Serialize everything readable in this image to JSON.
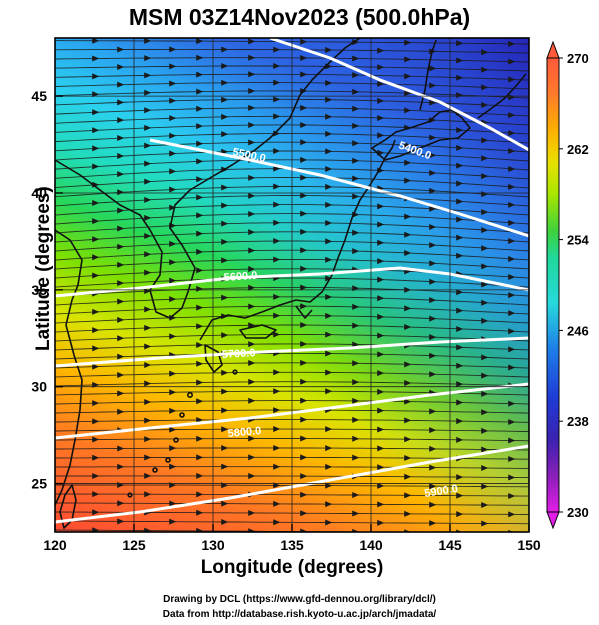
{
  "title": "MSM 03Z14Nov2023 (500.0hPa)",
  "axes": {
    "xlabel": "Longitude (degrees)",
    "ylabel": "Latitude  (degrees)",
    "xlim": [
      120,
      150
    ],
    "ylim": [
      22.5,
      48
    ],
    "x_ticks": [
      "120",
      "125",
      "130",
      "135",
      "140",
      "145",
      "150"
    ],
    "y_ticks": [
      "25",
      "30",
      "35",
      "40",
      "45"
    ]
  },
  "colorbar": {
    "range": [
      230,
      270
    ],
    "tick_labels": [
      "270",
      "262",
      "254",
      "246",
      "238",
      "230"
    ],
    "colors": [
      "#ff5a3c",
      "#ff7b2a",
      "#ffb000",
      "#e8e000",
      "#a8e600",
      "#3fd23a",
      "#1fd89a",
      "#27d9dc",
      "#1fb8f0",
      "#1e7fe8",
      "#1f3bd6",
      "#3b22b0",
      "#8a1fb8",
      "#e21ee6"
    ]
  },
  "contour_labels": [
    "5900.0",
    "5800.0",
    "5700.0",
    "5600.0",
    "5500.0",
    "5400.0"
  ],
  "credits": {
    "line1": "Drawing by DCL (https://www.gfd-dennou.org/library/dcl/)",
    "line2": "Data from http://database.rish.kyoto-u.ac.jp/arch/jmadata/"
  }
}
